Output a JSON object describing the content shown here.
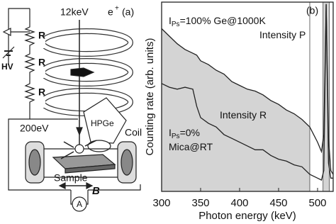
{
  "diagram": {
    "beam": "12keV",
    "particle": "e",
    "charge": "+",
    "panel": "(a)",
    "resistors": [
      "R",
      "R",
      "R"
    ],
    "hv": "HV",
    "energy": "200eV",
    "detector": "HPGe",
    "coil": "Coil",
    "sample": "Sample",
    "field": "B",
    "meter": "A"
  },
  "chart_data": {
    "type": "line",
    "panel": "(b)",
    "x_label": "Photon energy (keV)",
    "y_label": "Counting rate (arb. units)",
    "xlim": [
      300,
      520
    ],
    "xticks": [
      300,
      350,
      400,
      450,
      500
    ],
    "ylim": [
      0,
      100
    ],
    "shaded_range": [
      300,
      490
    ],
    "peak_band": [
      507,
      515
    ],
    "shade_color": "#d4d4d4",
    "x": [
      300,
      310,
      320,
      330,
      340,
      345,
      350,
      360,
      370,
      380,
      390,
      400,
      410,
      420,
      430,
      440,
      450,
      460,
      470,
      480,
      490,
      500,
      505,
      508,
      511,
      514,
      517,
      520
    ],
    "series": [
      {
        "color": "#222222",
        "values": [
          86,
          82,
          78,
          75,
          73,
          72,
          69,
          67,
          64,
          62,
          58,
          56,
          54,
          53,
          51,
          48,
          46,
          43,
          41,
          38,
          34,
          26,
          21,
          30,
          99,
          28,
          11,
          9
        ]
      },
      {
        "color": "#222222",
        "values": [
          57,
          55,
          54,
          55,
          54,
          45,
          39,
          36,
          34,
          30,
          28,
          26,
          24,
          22,
          22,
          19,
          17,
          16,
          14,
          13,
          9,
          7,
          6,
          11,
          99,
          15,
          7,
          7
        ]
      }
    ],
    "annotations": [
      {
        "symbol": "I",
        "subscript": "Ps",
        "text": "=100% Ge@1000K"
      },
      {
        "text": "Intensity P"
      },
      {
        "text": "Intensity R"
      },
      {
        "symbol": "I",
        "subscript": "Ps",
        "text": "=0%"
      },
      {
        "text": "Mica@RT"
      }
    ]
  }
}
